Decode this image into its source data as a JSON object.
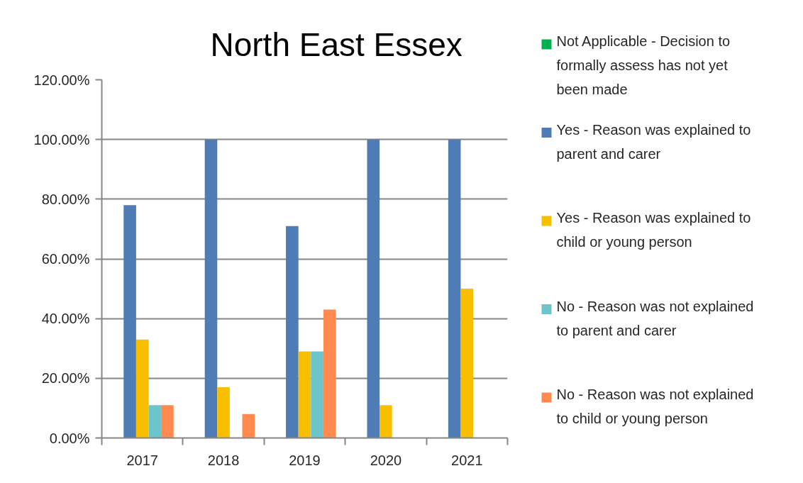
{
  "chart_data": {
    "type": "bar",
    "title": "North East Essex",
    "categories": [
      "2017",
      "2018",
      "2019",
      "2020",
      "2021"
    ],
    "series": [
      {
        "name": "Not Applicable - Decision to formally assess has not yet been made",
        "color": "#00b050",
        "values": [
          null,
          null,
          null,
          null,
          null
        ]
      },
      {
        "name": "Yes - Reason was explained to parent and carer",
        "color": "#4f7cb5",
        "values": [
          78,
          100,
          71,
          100,
          100
        ]
      },
      {
        "name": "Yes -  Reason was explained to child or young person",
        "color": "#f8bf00",
        "values": [
          33,
          17,
          29,
          11,
          50
        ]
      },
      {
        "name": "No - Reason was not explained to parent and carer",
        "color": "#6bc5cb",
        "values": [
          11,
          null,
          29,
          null,
          null
        ]
      },
      {
        "name": "No - Reason was not explained to child or young person",
        "color": "#fe8a4f",
        "values": [
          11,
          8,
          43,
          null,
          null
        ]
      }
    ],
    "ylim": [
      0,
      120
    ],
    "yticks": [
      {
        "value": 0,
        "label": "0.00%"
      },
      {
        "value": 20,
        "label": "20.00%"
      },
      {
        "value": 40,
        "label": "40.00%"
      },
      {
        "value": 60,
        "label": "60.00%"
      },
      {
        "value": 80,
        "label": "80.00%"
      },
      {
        "value": 100,
        "label": "100.00%"
      },
      {
        "value": 120,
        "label": "120.00%"
      }
    ],
    "grid": "y",
    "legend": "right"
  }
}
